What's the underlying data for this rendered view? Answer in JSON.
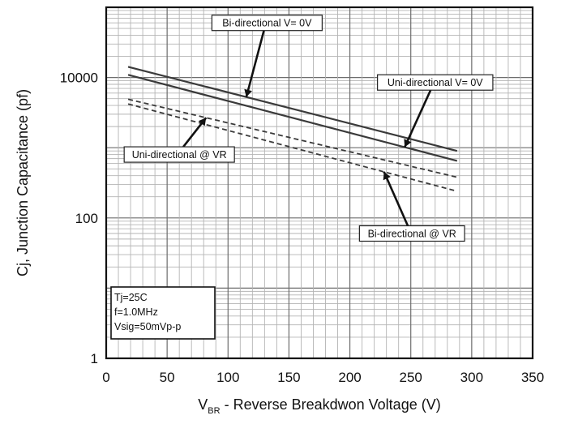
{
  "chart_data": {
    "type": "line",
    "title": "",
    "xlabel": {
      "main": "V",
      "sub": "BR",
      "rest": " - Reverse Breakdwon Voltage (V)"
    },
    "ylabel": "Cj, Junction Capacitance (pf)",
    "xlim": [
      0,
      350
    ],
    "ylim": [
      1,
      100000
    ],
    "yscale": "log",
    "grid": true,
    "x_ticks": [
      "0",
      "50",
      "100",
      "150",
      "200",
      "250",
      "300",
      "350"
    ],
    "y_ticks": [
      {
        "value": 1,
        "label": "1"
      },
      {
        "value": 100,
        "label": "100"
      },
      {
        "value": 10000,
        "label": "10000"
      }
    ],
    "series": [
      {
        "name": "Bi-directional V= 0V",
        "style": "solid",
        "x": [
          18,
          288
        ],
        "y": [
          14200,
          900
        ]
      },
      {
        "name": "Uni-directional V= 0V",
        "style": "solid",
        "x": [
          18,
          288
        ],
        "y": [
          10900,
          650
        ]
      },
      {
        "name": "Uni-directional @ VR",
        "style": "dashed",
        "x": [
          18,
          288
        ],
        "y": [
          4900,
          380
        ]
      },
      {
        "name": "Bi-directional @ VR",
        "style": "dashed",
        "x": [
          18,
          288
        ],
        "y": [
          4200,
          240
        ]
      }
    ],
    "annotations": [
      {
        "text": "Bi-directional V= 0V",
        "series": 0,
        "box_x": 132,
        "box_y": 60000,
        "arrow_to_x": 115
      },
      {
        "text": "Uni-directional V= 0V",
        "series": 1,
        "box_x": 270,
        "box_y": 8500,
        "arrow_to_x": 245
      },
      {
        "text": "Uni-directional @ VR",
        "series": 2,
        "box_x": 60,
        "box_y": 800,
        "arrow_to_x": 82
      },
      {
        "text": "Bi-directional @ VR",
        "series": 3,
        "box_x": 251,
        "box_y": 60,
        "arrow_to_x": 228
      }
    ],
    "conditions": [
      "Tj=25C",
      "f=1.0MHz",
      "Vsig=50mVp-p"
    ]
  }
}
